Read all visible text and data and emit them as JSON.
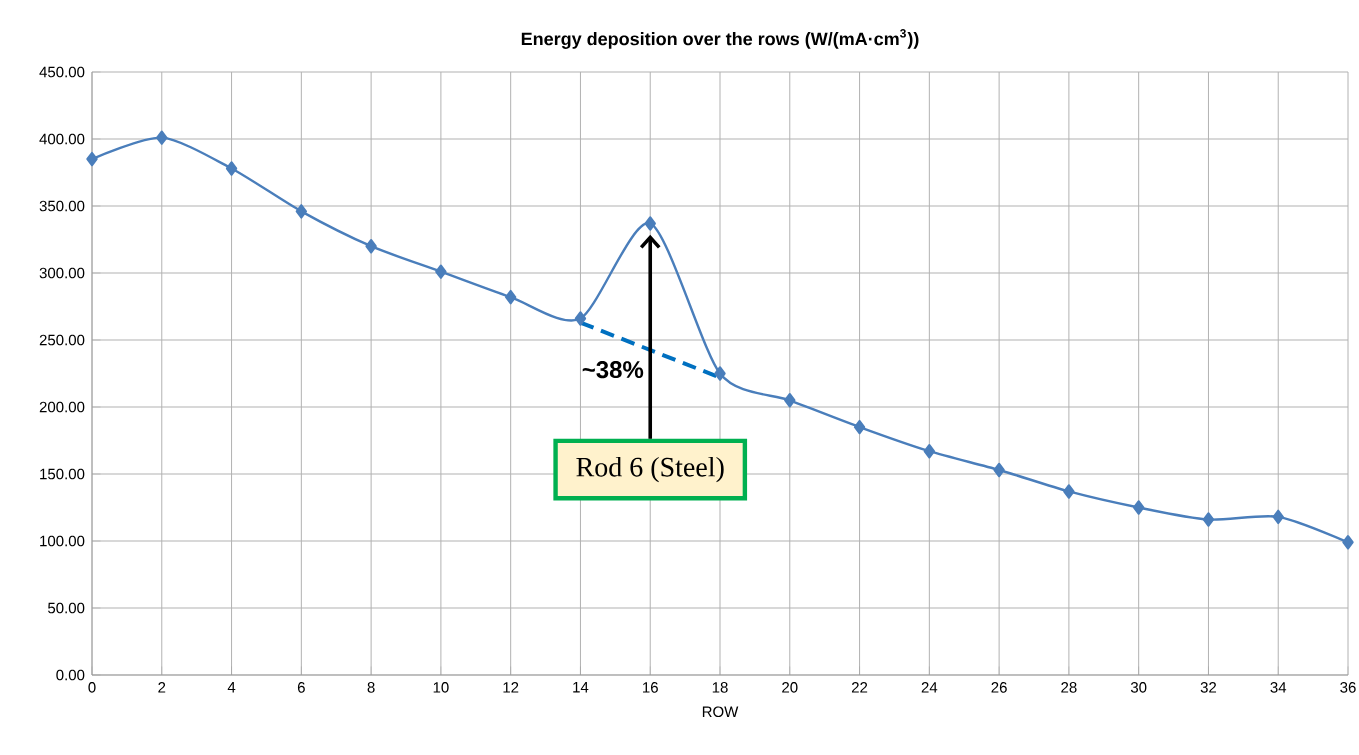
{
  "chart_data": {
    "type": "line",
    "title": "Energy deposition over the rows (W/(mA·cm$^{3}$))",
    "xlabel": "ROW",
    "x": [
      0,
      2,
      4,
      6,
      8,
      10,
      12,
      14,
      16,
      18,
      20,
      22,
      24,
      26,
      28,
      30,
      32,
      34,
      36
    ],
    "series": [
      {
        "color": "#4a7ebb",
        "marker": "diamond",
        "values": [
          385,
          401,
          378,
          346,
          320,
          301,
          282,
          266,
          337,
          225,
          205,
          185,
          167,
          153,
          137,
          125,
          116,
          118,
          99
        ]
      },
      {
        "type": "line",
        "color": "#0070c0",
        "line_style": "dashed",
        "marker": "none",
        "x": [
          14,
          18
        ],
        "values": [
          263,
          222
        ]
      }
    ],
    "xlim": [
      0,
      36
    ],
    "xticks": [
      0,
      2,
      4,
      6,
      8,
      10,
      12,
      14,
      16,
      18,
      20,
      22,
      24,
      26,
      28,
      30,
      32,
      34,
      36
    ],
    "ylim": [
      0,
      450
    ],
    "yticks": [
      {
        "value": 0,
        "label": "0.00"
      },
      {
        "value": 50,
        "label": "50.00"
      },
      {
        "value": 100,
        "label": "100.00"
      },
      {
        "value": 150,
        "label": "150.00"
      },
      {
        "value": 200,
        "label": "200.00"
      },
      {
        "value": 250,
        "label": "250.00"
      },
      {
        "value": 300,
        "label": "300.00"
      },
      {
        "value": 350,
        "label": "350.00"
      },
      {
        "value": 400,
        "label": "400.00"
      },
      {
        "value": 450,
        "label": "450.00"
      }
    ],
    "grid": true,
    "annotations": [
      {
        "text": "~38%",
        "x": 16,
        "y": 242
      },
      "Rod 6 (Steel)"
    ]
  }
}
